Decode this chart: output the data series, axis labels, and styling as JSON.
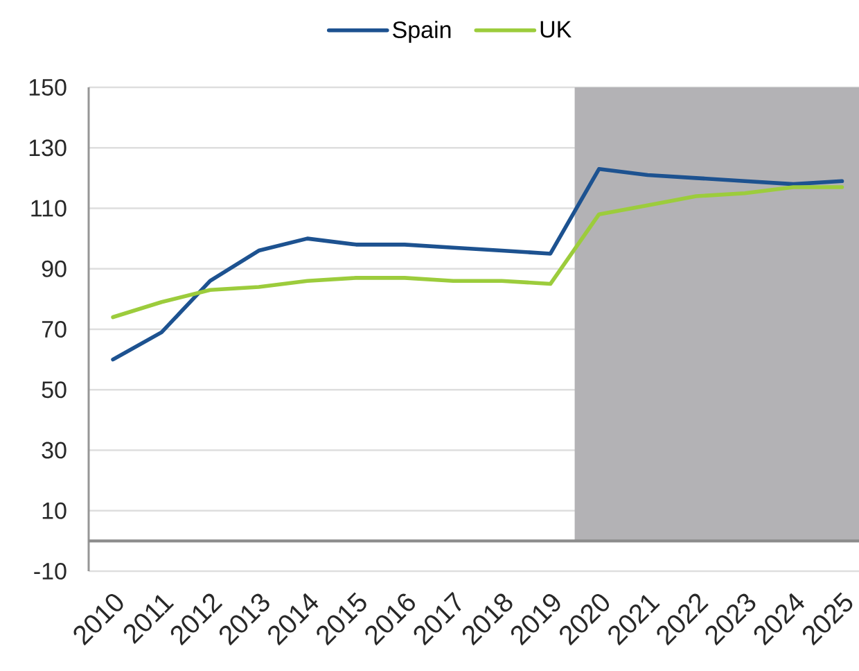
{
  "chart_data": {
    "type": "line",
    "x": [
      2010,
      2011,
      2012,
      2013,
      2014,
      2015,
      2016,
      2017,
      2018,
      2019,
      2020,
      2021,
      2022,
      2023,
      2024,
      2025
    ],
    "series": [
      {
        "name": "Spain",
        "color": "#1d5290",
        "values": [
          60,
          69,
          86,
          96,
          100,
          98,
          98,
          97,
          96,
          95,
          123,
          121,
          120,
          119,
          118,
          119
        ]
      },
      {
        "name": "UK",
        "color": "#9ccc3c",
        "values": [
          74,
          79,
          83,
          84,
          86,
          87,
          87,
          86,
          86,
          85,
          108,
          111,
          114,
          115,
          117,
          117
        ]
      }
    ],
    "xlim": [
      2009.5,
      2025.35
    ],
    "ylim": [
      -10,
      150
    ],
    "xticks": [
      2010,
      2011,
      2012,
      2013,
      2014,
      2015,
      2016,
      2017,
      2018,
      2019,
      2020,
      2021,
      2022,
      2023,
      2024,
      2025
    ],
    "yticks": [
      -10,
      10,
      30,
      50,
      70,
      90,
      110,
      130,
      150
    ],
    "grid": "y",
    "legend": "top",
    "ref_lines": [
      {
        "axis": "y",
        "value": 0,
        "color": "#8c8c8c"
      }
    ],
    "bands": [
      {
        "axis": "x",
        "from": 2019.5,
        "to": 2025.35,
        "color": "#b3b2b5"
      }
    ]
  }
}
